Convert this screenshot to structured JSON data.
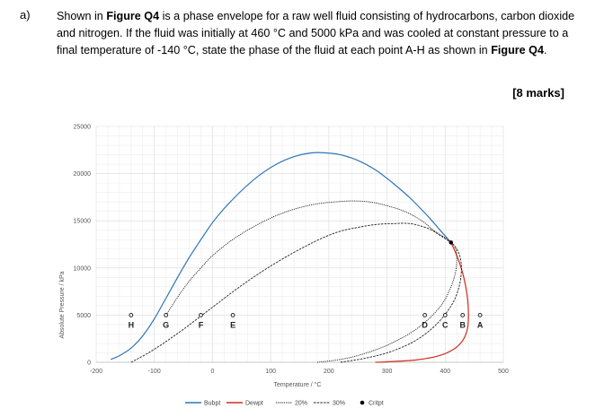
{
  "question": {
    "label": "a)",
    "segments": [
      "Shown in ",
      "Figure Q4",
      " is a phase envelope for a raw well fluid consisting of hydrocarbons, carbon dioxide and nitrogen. If the fluid was initially at 460 °C and 5000 kPa and was cooled at constant pressure to a final temperature of -140 °C, state the phase of the fluid at each point A-H as shown in ",
      "Figure Q4",
      "."
    ],
    "marks": "[8 marks]"
  },
  "chart_data": {
    "type": "line",
    "xlabel": "Temperature / °C",
    "ylabel": "Absolute Pressure / kPa",
    "xlim": [
      -200,
      500
    ],
    "ylim": [
      0,
      25000
    ],
    "xticks": [
      -200,
      -100,
      0,
      100,
      200,
      300,
      400,
      500
    ],
    "yticks": [
      0,
      5000,
      10000,
      15000,
      20000,
      25000
    ],
    "grid": true,
    "legend_position": "bottom",
    "colors": {
      "bubpt": "#2e75b6",
      "dewpt": "#d42a1e",
      "quality": "#222222"
    },
    "series": [
      {
        "name": "Bubpt",
        "style": "solid",
        "x": [
          -175,
          -160,
          -140,
          -120,
          -100,
          -80,
          -60,
          -40,
          -20,
          0,
          20,
          50,
          80,
          110,
          140,
          170,
          195,
          220,
          250,
          280,
          310,
          340,
          370,
          390,
          410
        ],
        "y": [
          300,
          700,
          1500,
          2800,
          4600,
          6800,
          9000,
          11100,
          13000,
          14800,
          16300,
          18200,
          19800,
          21000,
          21800,
          22200,
          22200,
          22000,
          21400,
          20400,
          19000,
          17400,
          15500,
          14100,
          12700
        ]
      },
      {
        "name": "Dewpt",
        "style": "solid",
        "x": [
          410,
          422,
          432,
          438,
          440,
          438,
          430,
          415,
          390,
          350,
          300,
          280
        ],
        "y": [
          12700,
          11000,
          9000,
          7000,
          5000,
          3500,
          2300,
          1400,
          700,
          250,
          50,
          0
        ]
      },
      {
        "name": "20%",
        "style": "dotted",
        "x": [
          -80,
          -60,
          -40,
          -20,
          0,
          30,
          60,
          90,
          120,
          150,
          180,
          210,
          240,
          270,
          300,
          330,
          360,
          380,
          400,
          410
        ],
        "y": [
          5000,
          6900,
          8600,
          10000,
          11300,
          12800,
          14000,
          15000,
          15800,
          16400,
          16800,
          17000,
          17100,
          17000,
          16600,
          16000,
          15000,
          14000,
          13200,
          12700
        ]
      },
      {
        "name": "30%",
        "style": "dashed",
        "x": [
          -140,
          -110,
          -80,
          -50,
          -20,
          10,
          40,
          70,
          100,
          130,
          160,
          190,
          220,
          250,
          280,
          310,
          340,
          370,
          390,
          410
        ],
        "y": [
          0,
          1000,
          2200,
          3500,
          4900,
          6300,
          7700,
          9000,
          10200,
          11300,
          12300,
          13200,
          13900,
          14300,
          14600,
          14700,
          14700,
          14200,
          13500,
          12700
        ]
      },
      {
        "name": "20% lower",
        "style": "dotted",
        "x": [
          180,
          220,
          260,
          300,
          340,
          370,
          395,
          410,
          418,
          420,
          419,
          415,
          410
        ],
        "y": [
          0,
          300,
          900,
          1800,
          3100,
          4500,
          6200,
          8000,
          9600,
          10900,
          11800,
          12400,
          12700
        ]
      },
      {
        "name": "30% lower",
        "style": "dashed",
        "x": [
          220,
          260,
          300,
          340,
          370,
          395,
          415,
          425,
          428,
          425,
          418,
          410
        ],
        "y": [
          0,
          400,
          1000,
          2000,
          3200,
          4700,
          6500,
          8300,
          10000,
          11300,
          12200,
          12700
        ]
      }
    ],
    "critical_point": {
      "name": "Critpt",
      "x": 410,
      "y": 12700
    },
    "points": [
      {
        "label": "A",
        "x": 460,
        "y": 5000
      },
      {
        "label": "B",
        "x": 430,
        "y": 5000
      },
      {
        "label": "C",
        "x": 400,
        "y": 5000
      },
      {
        "label": "D",
        "x": 365,
        "y": 5000
      },
      {
        "label": "E",
        "x": 35,
        "y": 5000
      },
      {
        "label": "F",
        "x": -20,
        "y": 5000
      },
      {
        "label": "G",
        "x": -80,
        "y": 5000
      },
      {
        "label": "H",
        "x": -140,
        "y": 5000
      }
    ],
    "legend": [
      {
        "name": "Bubpt",
        "style": "solid",
        "color": "#2e75b6"
      },
      {
        "name": "Dewpt",
        "style": "solid",
        "color": "#d42a1e"
      },
      {
        "name": "20%",
        "style": "dotted",
        "color": "#222222"
      },
      {
        "name": "30%",
        "style": "dashed",
        "color": "#222222"
      },
      {
        "name": "Critpt",
        "style": "marker",
        "color": "#000000"
      }
    ]
  }
}
